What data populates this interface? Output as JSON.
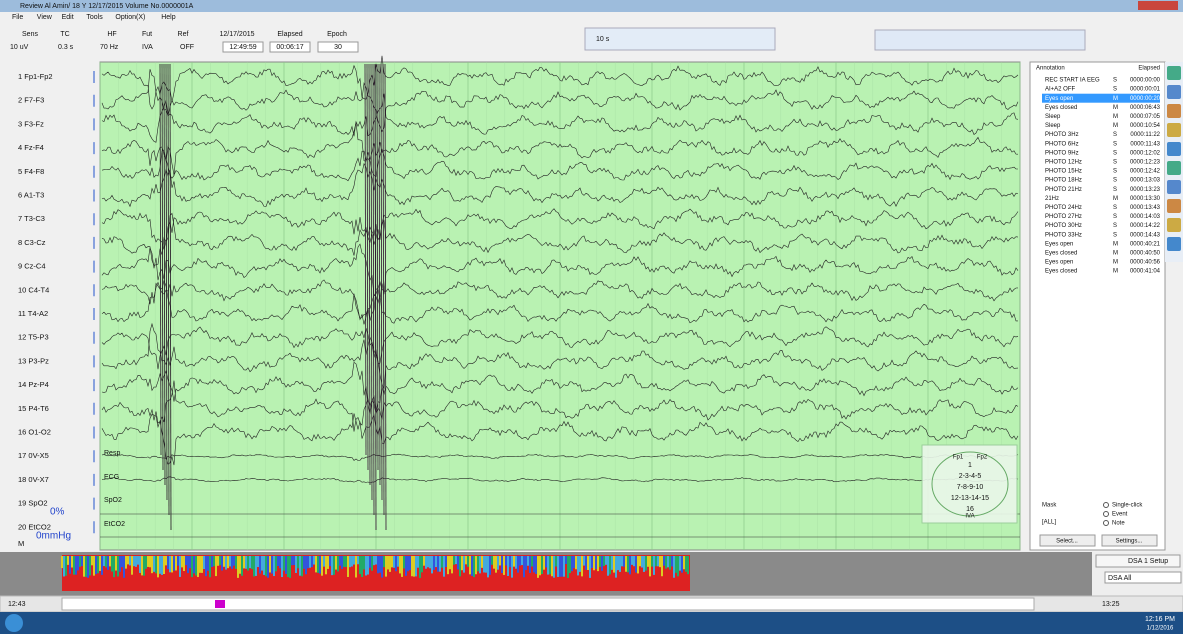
{
  "title_bar": {
    "title": "Review  Al Amin/ 18 Y  12/17/2015  Volume No.0000001A"
  },
  "menu": [
    "File",
    "View",
    "Edit",
    "Tools",
    "Option(X)",
    "Help"
  ],
  "settings": {
    "labels": [
      "Sens",
      "TC",
      "HF",
      "Fut",
      "Ref"
    ],
    "values": [
      "10 uV",
      "0.3 s",
      "70 Hz",
      "IVA",
      "OFF"
    ],
    "date": "12/17/2015",
    "time": "12:49:59",
    "elapsed_label": "Elapsed",
    "elapsed": "00:06:17",
    "epoch_label": "Epoch",
    "epoch": "30"
  },
  "page_length": "10 s",
  "channels": [
    "1 Fp1-Fp2",
    "2 F7-F3",
    "3 F3-Fz",
    "4 Fz-F4",
    "5 F4-F8",
    "6 A1-T3",
    "7 T3-C3",
    "8 C3-Cz",
    "9 Cz-C4",
    "10 C4-T4",
    "11 T4-A2",
    "12 T5-P3",
    "13 P3-Pz",
    "14 Pz-P4",
    "15 P4-T6",
    "16 O1-O2",
    "17 0V-X5",
    "18 0V-X7",
    "19 SpO2",
    "20 EtCO2",
    "M"
  ],
  "overlays": {
    "traces": [
      "Resp",
      "ECG",
      "SpO2",
      "EtCO2"
    ],
    "spo2_value": "0%",
    "etco2_value": "0mmHg"
  },
  "annotations": {
    "headers": [
      "Annotation",
      "Elapsed"
    ],
    "rows": [
      [
        "REC START IA EEG",
        "S",
        "0000:00:00"
      ],
      [
        "AI+A2 OFF",
        "S",
        "0000:00:01"
      ],
      [
        "Eyes open",
        "M",
        "0000:00:20"
      ],
      [
        "Eyes closed",
        "M",
        "0000:06:43"
      ],
      [
        "Sleep",
        "M",
        "0000:07:05"
      ],
      [
        "Sleep",
        "M",
        "0000:10:54"
      ],
      [
        "PHOTO 3Hz",
        "S",
        "0000:11:22"
      ],
      [
        "PHOTO 6Hz",
        "S",
        "0000:11:43"
      ],
      [
        "PHOTO 9Hz",
        "S",
        "0000:12:02"
      ],
      [
        "PHOTO 12Hz",
        "S",
        "0000:12:23"
      ],
      [
        "PHOTO 15Hz",
        "S",
        "0000:12:42"
      ],
      [
        "PHOTO 18Hz",
        "S",
        "0000:13:03"
      ],
      [
        "PHOTO 21Hz",
        "S",
        "0000:13:23"
      ],
      [
        "21Hz",
        "M",
        "0000:13:30"
      ],
      [
        "PHOTO 24Hz",
        "S",
        "0000:13:43"
      ],
      [
        "PHOTO 27Hz",
        "S",
        "0000:14:03"
      ],
      [
        "PHOTO 30Hz",
        "S",
        "0000:14:22"
      ],
      [
        "PHOTO 33Hz",
        "S",
        "0000:14:43"
      ],
      [
        "Eyes open",
        "M",
        "0000:40:21"
      ],
      [
        "Eyes closed",
        "M",
        "0000:40:50"
      ],
      [
        "Eyes open",
        "M",
        "0000:40:56"
      ],
      [
        "Eyes closed",
        "M",
        "0000:41:04"
      ]
    ]
  },
  "head_map": {
    "top": [
      "Fp1",
      "Fp2"
    ],
    "rows": [
      "1",
      "2-3-4-5",
      "7-8-9-10",
      "12-13-14-15",
      "16"
    ],
    "bottom": "IVA"
  },
  "event_panel": {
    "mask": "Mask",
    "all": "[ALL]",
    "options": [
      "Single-click",
      "Event",
      "Note"
    ],
    "buttons": [
      "Select...",
      "Settings..."
    ]
  },
  "dsa": {
    "setup": "DSA 1 Setup",
    "mode": "DSA All"
  },
  "timeline": {
    "start": "12:43",
    "end": "13:25"
  },
  "taskbar": {
    "time": "12:16 PM",
    "date": "1/12/2016"
  }
}
